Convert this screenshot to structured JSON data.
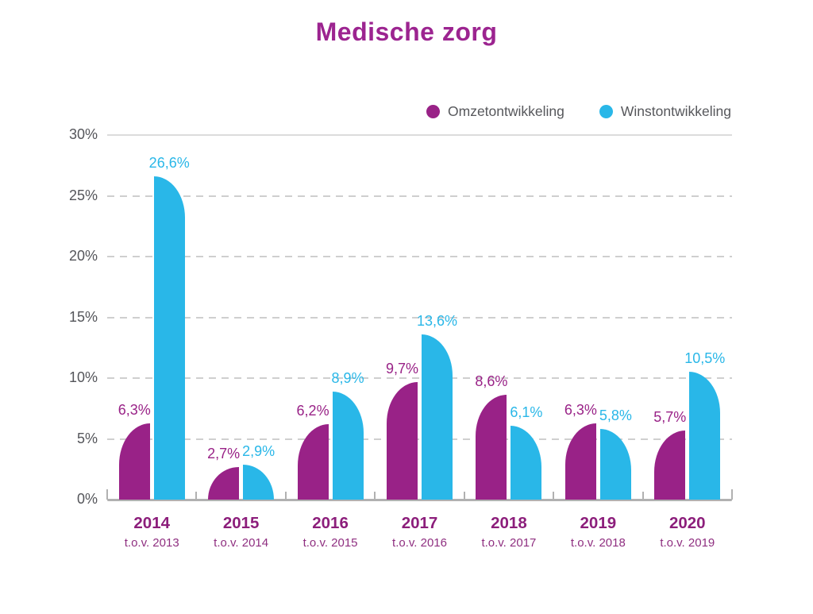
{
  "title": "Medische zorg",
  "legend": [
    {
      "name": "Omzetontwikkeling",
      "color": "#992287"
    },
    {
      "name": "Winstontwikkeling",
      "color": "#29b7e8"
    }
  ],
  "colors": {
    "title": "#9c2490",
    "purple_series": "#992287",
    "cyan_series": "#29b7e8",
    "year_label": "#8c1e7b",
    "tov_label": "#8f2f80",
    "gray_text": "#56575b",
    "axis": "#b1b1b1",
    "grid_dashed": "#cfcfcf",
    "grid_solid": "#dcdcdc"
  },
  "chart_data": {
    "type": "bar",
    "title": "Medische zorg",
    "xlabel": "",
    "ylabel": "",
    "ylim": [
      0,
      30
    ],
    "grid": "horizontal-dashed",
    "legend_position": "top-right",
    "categories": [
      {
        "year": "2014",
        "sub": "t.o.v. 2013"
      },
      {
        "year": "2015",
        "sub": "t.o.v. 2014"
      },
      {
        "year": "2016",
        "sub": "t.o.v. 2015"
      },
      {
        "year": "2017",
        "sub": "t.o.v. 2016"
      },
      {
        "year": "2018",
        "sub": "t.o.v. 2017"
      },
      {
        "year": "2019",
        "sub": "t.o.v. 2018"
      },
      {
        "year": "2020",
        "sub": "t.o.v. 2019"
      }
    ],
    "series": [
      {
        "name": "Omzetontwikkeling",
        "color": "#992287",
        "values": [
          6.3,
          2.7,
          6.2,
          9.7,
          8.6,
          6.3,
          5.7
        ],
        "labels": [
          "6,3%",
          "2,7%",
          "6,2%",
          "9,7%",
          "8,6%",
          "6,3%",
          "5,7%"
        ]
      },
      {
        "name": "Winstontwikkeling",
        "color": "#29b7e8",
        "values": [
          26.6,
          2.9,
          8.9,
          13.6,
          6.1,
          5.8,
          10.5
        ],
        "labels": [
          "26,6%",
          "2,9%",
          "8,9%",
          "13,6%",
          "6,1%",
          "5,8%",
          "10,5%"
        ]
      }
    ],
    "y_ticks": [
      {
        "label": "30%",
        "value": 30,
        "line": "solid"
      },
      {
        "label": "25%",
        "value": 25,
        "line": "dashed"
      },
      {
        "label": "20%",
        "value": 20,
        "line": "dashed"
      },
      {
        "label": "15%",
        "value": 15,
        "line": "dashed"
      },
      {
        "label": "10%",
        "value": 10,
        "line": "dashed"
      },
      {
        "label": "5%",
        "value": 5,
        "line": "dashed"
      },
      {
        "label": "0%",
        "value": 0,
        "line": "axis"
      }
    ]
  }
}
